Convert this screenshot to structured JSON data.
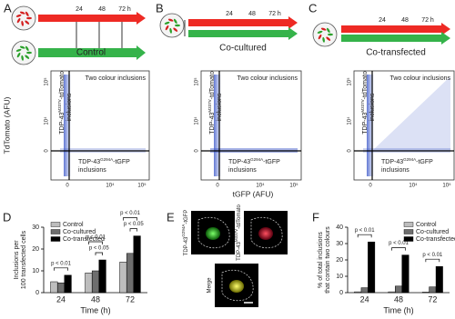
{
  "panels": [
    {
      "letter": "A",
      "times": [
        "24",
        "48",
        "72 h"
      ],
      "condition": "Control"
    },
    {
      "letter": "B",
      "times": [
        "24",
        "48",
        "72 h"
      ],
      "condition": "Co-cultured"
    },
    {
      "letter": "C",
      "times": [
        "24",
        "48",
        "72 h"
      ],
      "condition": "Co-transfected"
    }
  ],
  "flow": {
    "y_label": "TdTomato (AFU)",
    "x_label": "tGFP (AFU)",
    "y_ticks": [
      "10⁵",
      "10⁴",
      "0"
    ],
    "x_ticks": [
      "0",
      "10⁴",
      "10⁵"
    ],
    "two_colour": "Two colour inclusions",
    "red_only": {
      "prefix": "TDP-43",
      "sup": "M337V",
      "suffix": "-tdTomato",
      "line2": "inclusions"
    },
    "green_only": {
      "prefix": "TDP-43",
      "sup": "G294A",
      "suffix": "-tGFP",
      "line2": "inclusions"
    }
  },
  "panel_e": {
    "letter": "E",
    "green": {
      "prefix": "TDP-43",
      "sup": "G294A",
      "suffix": "-tGFP"
    },
    "red": {
      "prefix": "TDP-43",
      "sup": "M337V",
      "suffix": "-tdTomato"
    },
    "merge": "Merge"
  },
  "chart_data": [
    {
      "type": "bar",
      "letter": "D",
      "y_label": [
        "Inclusions per",
        "100 transfected cells"
      ],
      "x_label": "Time (h)",
      "categories": [
        "24",
        "48",
        "72"
      ],
      "series": [
        {
          "name": "Control",
          "color": "#bdbdbd",
          "values": [
            5,
            9,
            14
          ]
        },
        {
          "name": "Co-cultured",
          "color": "#6e6e6e",
          "values": [
            4.5,
            10,
            18
          ]
        },
        {
          "name": "Co-transfected",
          "color": "#000000",
          "values": [
            8,
            15,
            26
          ]
        }
      ],
      "ylim": [
        0,
        30
      ],
      "yticks": [
        0,
        10,
        20,
        30
      ],
      "legend": "upper left",
      "annotations": [
        [
          "p < 0.01"
        ],
        [
          "p < 0.05",
          "p < 0.01"
        ],
        [
          "p < 0.05",
          "p < 0.01"
        ]
      ]
    },
    {
      "type": "bar",
      "letter": "F",
      "y_label": [
        "% of total inclusions",
        "that contain two colours"
      ],
      "x_label": "Time (h)",
      "categories": [
        "24",
        "48",
        "72"
      ],
      "series": [
        {
          "name": "Control",
          "color": "#bdbdbd",
          "values": [
            0.5,
            0.5,
            0.3
          ]
        },
        {
          "name": "Co-cultured",
          "color": "#6e6e6e",
          "values": [
            3,
            4,
            3.5
          ]
        },
        {
          "name": "Co-transfected",
          "color": "#000000",
          "values": [
            31,
            23,
            16
          ]
        }
      ],
      "ylim": [
        0,
        40
      ],
      "yticks": [
        0,
        10,
        20,
        30,
        40
      ],
      "legend": "upper right",
      "annotations": [
        [
          "p < 0.01"
        ],
        [
          "p < 0.01"
        ],
        [
          "p < 0.01"
        ]
      ]
    }
  ]
}
